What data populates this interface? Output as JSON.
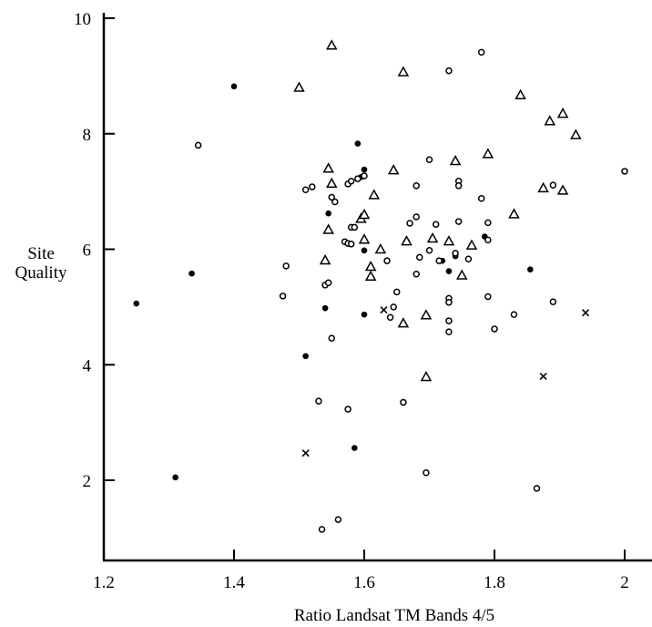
{
  "chart_data": {
    "type": "scatter",
    "title": "",
    "xlabel": "Ratio Landsat TM Bands 4/5",
    "ylabel": [
      "Site",
      "Quality"
    ],
    "xlim": [
      1.2,
      2.02
    ],
    "ylim": [
      0.75,
      10.05
    ],
    "x_ticks": [
      1.2,
      1.4,
      1.6,
      1.8,
      2.0
    ],
    "x_tick_labels": [
      "1.2",
      "1.4",
      "1.6",
      "1.8",
      "2"
    ],
    "y_ticks": [
      2,
      4,
      6,
      8,
      10
    ],
    "y_tick_labels": [
      "2",
      "4",
      "6",
      "8",
      "10"
    ],
    "grid": false,
    "legend": "none",
    "series": [
      {
        "marker": "filled-circle",
        "points": [
          [
            1.25,
            5.06
          ],
          [
            1.31,
            2.05
          ],
          [
            1.335,
            5.58
          ],
          [
            1.4,
            8.82
          ],
          [
            1.51,
            4.15
          ],
          [
            1.54,
            4.98
          ],
          [
            1.545,
            6.62
          ],
          [
            1.585,
            2.56
          ],
          [
            1.59,
            7.83
          ],
          [
            1.6,
            7.38
          ],
          [
            1.6,
            5.98
          ],
          [
            1.6,
            4.87
          ],
          [
            1.595,
            7.25
          ],
          [
            1.73,
            5.62
          ],
          [
            1.72,
            5.8
          ],
          [
            1.74,
            5.88
          ],
          [
            1.785,
            6.22
          ],
          [
            1.855,
            5.65
          ]
        ]
      },
      {
        "marker": "open-circle",
        "points": [
          [
            1.345,
            7.8
          ],
          [
            1.48,
            5.71
          ],
          [
            1.475,
            5.19
          ],
          [
            1.51,
            7.03
          ],
          [
            1.52,
            7.08
          ],
          [
            1.53,
            3.37
          ],
          [
            1.535,
            1.15
          ],
          [
            1.54,
            5.38
          ],
          [
            1.545,
            5.42
          ],
          [
            1.55,
            4.46
          ],
          [
            1.55,
            6.9
          ],
          [
            1.555,
            6.82
          ],
          [
            1.56,
            1.32
          ],
          [
            1.57,
            6.13
          ],
          [
            1.575,
            6.1
          ],
          [
            1.575,
            3.23
          ],
          [
            1.575,
            7.13
          ],
          [
            1.58,
            6.38
          ],
          [
            1.58,
            6.09
          ],
          [
            1.585,
            6.38
          ],
          [
            1.58,
            7.18
          ],
          [
            1.59,
            7.22
          ],
          [
            1.6,
            7.27
          ],
          [
            1.635,
            5.8
          ],
          [
            1.64,
            4.82
          ],
          [
            1.645,
            5.0
          ],
          [
            1.65,
            5.26
          ],
          [
            1.66,
            3.35
          ],
          [
            1.665,
            6.13
          ],
          [
            1.67,
            6.45
          ],
          [
            1.68,
            7.1
          ],
          [
            1.68,
            6.56
          ],
          [
            1.68,
            5.57
          ],
          [
            1.685,
            5.86
          ],
          [
            1.695,
            2.13
          ],
          [
            1.7,
            7.55
          ],
          [
            1.7,
            5.98
          ],
          [
            1.71,
            6.43
          ],
          [
            1.715,
            5.8
          ],
          [
            1.73,
            9.09
          ],
          [
            1.73,
            5.15
          ],
          [
            1.73,
            5.08
          ],
          [
            1.73,
            4.76
          ],
          [
            1.73,
            4.57
          ],
          [
            1.74,
            5.93
          ],
          [
            1.745,
            7.18
          ],
          [
            1.745,
            7.1
          ],
          [
            1.745,
            6.48
          ],
          [
            1.76,
            5.83
          ],
          [
            1.78,
            9.41
          ],
          [
            1.78,
            6.88
          ],
          [
            1.79,
            6.46
          ],
          [
            1.79,
            6.16
          ],
          [
            1.79,
            5.18
          ],
          [
            1.8,
            4.62
          ],
          [
            1.83,
            4.87
          ],
          [
            1.865,
            1.86
          ],
          [
            1.89,
            5.09
          ],
          [
            1.89,
            7.11
          ],
          [
            2.0,
            7.35
          ]
        ]
      },
      {
        "marker": "triangle",
        "points": [
          [
            1.5,
            8.8
          ],
          [
            1.54,
            5.81
          ],
          [
            1.545,
            7.4
          ],
          [
            1.545,
            6.34
          ],
          [
            1.55,
            9.53
          ],
          [
            1.55,
            7.14
          ],
          [
            1.595,
            6.53
          ],
          [
            1.6,
            6.6
          ],
          [
            1.6,
            6.17
          ],
          [
            1.61,
            5.7
          ],
          [
            1.61,
            5.53
          ],
          [
            1.615,
            6.94
          ],
          [
            1.625,
            6.0
          ],
          [
            1.645,
            7.37
          ],
          [
            1.66,
            9.07
          ],
          [
            1.66,
            4.72
          ],
          [
            1.665,
            6.14
          ],
          [
            1.695,
            4.86
          ],
          [
            1.695,
            3.79
          ],
          [
            1.705,
            6.19
          ],
          [
            1.73,
            6.14
          ],
          [
            1.74,
            7.53
          ],
          [
            1.75,
            5.55
          ],
          [
            1.765,
            6.07
          ],
          [
            1.79,
            7.65
          ],
          [
            1.83,
            6.61
          ],
          [
            1.84,
            8.67
          ],
          [
            1.875,
            7.06
          ],
          [
            1.885,
            8.22
          ],
          [
            1.905,
            8.35
          ],
          [
            1.905,
            7.02
          ],
          [
            1.925,
            7.98
          ]
        ]
      },
      {
        "marker": "cross",
        "points": [
          [
            1.51,
            2.47
          ],
          [
            1.63,
            4.95
          ],
          [
            1.875,
            3.8
          ],
          [
            1.94,
            4.9
          ]
        ]
      }
    ]
  }
}
